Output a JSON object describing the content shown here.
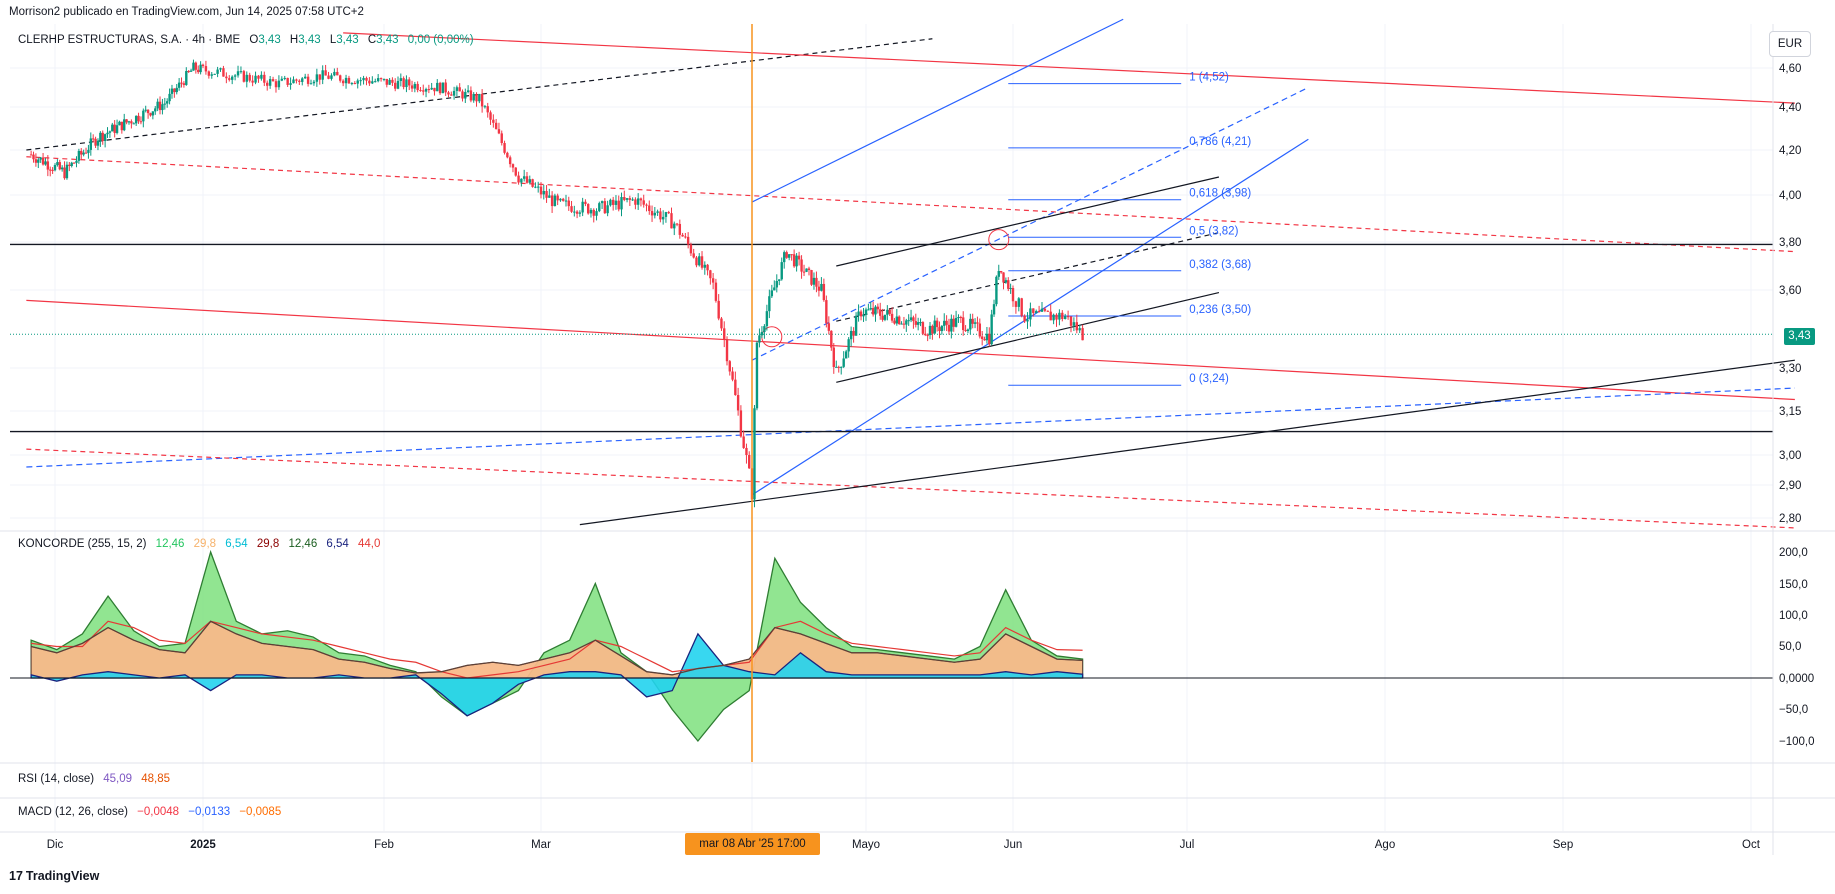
{
  "header": "Morrison2 publicado en TradingView.com, Jun 14, 2025 07:58 UTC+2",
  "symbol": {
    "name": "CLERHP ESTRUCTURAS, S.A. · 4h · BME",
    "o_label": "O",
    "o": "3,43",
    "h_label": "H",
    "h": "3,43",
    "l_label": "L",
    "l": "3,43",
    "c_label": "C",
    "c": "3,43",
    "change": "0,00 (0,00%)"
  },
  "currency_label": "EUR",
  "last_price_tag": "3,43",
  "crosshair_time_tag": "mar 08 Abr '25   17:00",
  "koncorde_legend": {
    "title": "KONCORDE (255, 15, 2)",
    "values": [
      "12,46",
      "29,8",
      "6,54",
      "29,8",
      "12,46",
      "6,54",
      "44,0"
    ]
  },
  "rsi_legend": {
    "title": "RSI (14, close)",
    "values": [
      "45,09",
      "48,85"
    ]
  },
  "macd_legend": {
    "title": "MACD (12, 26, close)",
    "values": [
      "−0,0048",
      "−0,0133",
      "−0,0085"
    ]
  },
  "price_axis_labels": [
    "4,60",
    "4,40",
    "4,20",
    "4,00",
    "3,80",
    "3,60",
    "3,30",
    "3,15",
    "3,00",
    "2,90",
    "2,80"
  ],
  "koncorde_axis_labels": [
    "200,0",
    "150,0",
    "100,0",
    "50,0",
    "0,0000",
    "−50,0",
    "−100,0"
  ],
  "time_axis_labels": [
    "Dic",
    "2025",
    "Feb",
    "Mar",
    "Mayo",
    "Jun",
    "Jul",
    "Ago",
    "Sep",
    "Oct"
  ],
  "fib_labels": [
    "1 (4,52)",
    "0,786 (4,21)",
    "0,618 (3,98)",
    "0,5 (3,82)",
    "0,382 (3,68)",
    "0,236 (3,50)",
    "0 (3,24)"
  ],
  "branding": "TradingView",
  "colors": {
    "up": "#089981",
    "down": "#f23645",
    "fib": "#2962ff",
    "crosshair": "#f7931e",
    "red_trend": "#f23645",
    "blue_trend": "#2962ff"
  },
  "chart_data": {
    "type": "candlestick",
    "interval": "4h",
    "currency": "EUR",
    "last_close": 3.43,
    "ylim": [
      2.76,
      4.72
    ],
    "x_range": [
      "2024-11-25",
      "2025-10-08"
    ],
    "price_series_approx": [
      {
        "date": "2024-11-26",
        "close": 4.18
      },
      {
        "date": "2024-12-03",
        "close": 4.1
      },
      {
        "date": "2024-12-10",
        "close": 4.26
      },
      {
        "date": "2024-12-17",
        "close": 4.34
      },
      {
        "date": "2024-12-24",
        "close": 4.42
      },
      {
        "date": "2024-12-30",
        "close": 4.6
      },
      {
        "date": "2025-01-07",
        "close": 4.56
      },
      {
        "date": "2025-01-14",
        "close": 4.52
      },
      {
        "date": "2025-01-21",
        "close": 4.56
      },
      {
        "date": "2025-01-28",
        "close": 4.54
      },
      {
        "date": "2025-02-04",
        "close": 4.52
      },
      {
        "date": "2025-02-11",
        "close": 4.5
      },
      {
        "date": "2025-02-18",
        "close": 4.44
      },
      {
        "date": "2025-02-25",
        "close": 4.08
      },
      {
        "date": "2025-03-04",
        "close": 3.96
      },
      {
        "date": "2025-03-11",
        "close": 3.94
      },
      {
        "date": "2025-03-18",
        "close": 3.98
      },
      {
        "date": "2025-03-25",
        "close": 3.88
      },
      {
        "date": "2025-04-01",
        "close": 3.62
      },
      {
        "date": "2025-04-08",
        "close": 2.88
      },
      {
        "date": "2025-04-09",
        "close": 3.4
      },
      {
        "date": "2025-04-15",
        "close": 3.76
      },
      {
        "date": "2025-04-22",
        "close": 3.6
      },
      {
        "date": "2025-04-25",
        "close": 3.28
      },
      {
        "date": "2025-04-30",
        "close": 3.52
      },
      {
        "date": "2025-05-07",
        "close": 3.5
      },
      {
        "date": "2025-05-14",
        "close": 3.45
      },
      {
        "date": "2025-05-21",
        "close": 3.48
      },
      {
        "date": "2025-05-27",
        "close": 3.42
      },
      {
        "date": "2025-05-29",
        "close": 3.7
      },
      {
        "date": "2025-06-03",
        "close": 3.5
      },
      {
        "date": "2025-06-10",
        "close": 3.5
      },
      {
        "date": "2025-06-13",
        "close": 3.43
      }
    ],
    "fibonacci": [
      {
        "level": "1",
        "price": 4.52
      },
      {
        "level": "0,786",
        "price": 4.21
      },
      {
        "level": "0,618",
        "price": 3.98
      },
      {
        "level": "0,5",
        "price": 3.82
      },
      {
        "level": "0,382",
        "price": 3.68
      },
      {
        "level": "0,236",
        "price": 3.5
      },
      {
        "level": "0",
        "price": 3.24
      }
    ],
    "horizontal_lines": [
      3.79,
      3.08
    ],
    "crosshair_date": "2025-04-08 17:00",
    "koncorde": {
      "ylim": [
        -140,
        215
      ],
      "series": [
        {
          "name": "green",
          "values_approx": [
            60,
            45,
            70,
            130,
            75,
            50,
            55,
            200,
            90,
            70,
            75,
            65,
            40,
            35,
            20,
            10,
            -30,
            -60,
            -40,
            -20,
            40,
            60,
            150,
            40,
            10,
            -50,
            -100,
            -50,
            -20,
            190,
            120,
            80,
            50,
            45,
            40,
            35,
            30,
            50,
            140,
            60,
            35,
            30
          ]
        },
        {
          "name": "brown",
          "values_approx": [
            50,
            40,
            55,
            80,
            60,
            45,
            40,
            90,
            70,
            55,
            50,
            45,
            30,
            25,
            15,
            8,
            10,
            20,
            25,
            20,
            30,
            40,
            60,
            35,
            10,
            5,
            15,
            20,
            30,
            80,
            70,
            55,
            40,
            40,
            35,
            30,
            25,
            30,
            70,
            50,
            30,
            28
          ]
        },
        {
          "name": "blue",
          "values_approx": [
            5,
            -5,
            5,
            10,
            5,
            0,
            5,
            -20,
            5,
            5,
            0,
            0,
            5,
            0,
            0,
            5,
            -25,
            -60,
            -40,
            -10,
            5,
            10,
            10,
            5,
            -30,
            -20,
            70,
            20,
            10,
            5,
            40,
            10,
            5,
            5,
            5,
            5,
            5,
            5,
            10,
            5,
            10,
            6
          ]
        },
        {
          "name": "red_ma",
          "values_approx": [
            55,
            50,
            50,
            90,
            80,
            60,
            55,
            90,
            80,
            70,
            65,
            60,
            50,
            40,
            30,
            25,
            10,
            0,
            5,
            10,
            20,
            30,
            60,
            50,
            30,
            10,
            15,
            20,
            25,
            80,
            90,
            70,
            55,
            50,
            45,
            40,
            35,
            40,
            80,
            60,
            45,
            44
          ]
        }
      ]
    }
  }
}
